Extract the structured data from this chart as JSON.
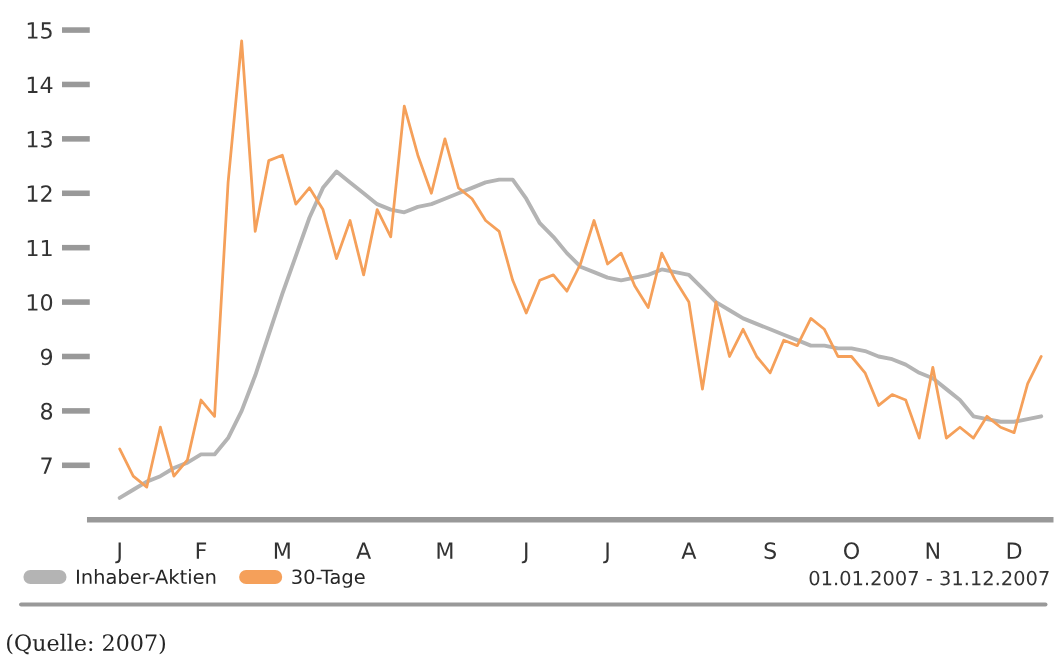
{
  "chart_data": {
    "type": "line",
    "categories": [
      "J",
      null,
      null,
      null,
      null,
      null,
      "F",
      null,
      null,
      null,
      null,
      null,
      "M",
      null,
      null,
      null,
      null,
      null,
      "A",
      null,
      null,
      null,
      null,
      null,
      "M",
      null,
      null,
      null,
      null,
      null,
      "J",
      null,
      null,
      null,
      null,
      null,
      "J",
      null,
      null,
      null,
      null,
      null,
      "A",
      null,
      null,
      null,
      null,
      null,
      "S",
      null,
      null,
      null,
      null,
      null,
      "O",
      null,
      null,
      null,
      null,
      null,
      "N",
      null,
      null,
      null,
      null,
      null,
      "D",
      null,
      null
    ],
    "ylim": [
      6,
      15
    ],
    "yticks": [
      7,
      8,
      9,
      10,
      11,
      12,
      13,
      14,
      15
    ],
    "grid": false,
    "legend": "bottom",
    "series": [
      {
        "name": "Inhaber-Aktien",
        "color": "#b4b4b4",
        "values": [
          6.4,
          6.55,
          6.7,
          6.8,
          6.95,
          7.05,
          7.2,
          7.2,
          7.5,
          8.0,
          8.65,
          9.4,
          10.15,
          10.85,
          11.55,
          12.1,
          12.4,
          12.2,
          12.0,
          11.8,
          11.7,
          11.65,
          11.75,
          11.8,
          11.9,
          12.0,
          12.1,
          12.2,
          12.25,
          12.25,
          11.9,
          11.45,
          11.2,
          10.9,
          10.65,
          10.55,
          10.45,
          10.4,
          10.45,
          10.5,
          10.6,
          10.55,
          10.5,
          10.25,
          10.0,
          9.85,
          9.7,
          9.6,
          9.5,
          9.4,
          9.3,
          9.2,
          9.2,
          9.15,
          9.15,
          9.1,
          9.0,
          8.95,
          8.85,
          8.7,
          8.6,
          8.4,
          8.2,
          7.9,
          7.85,
          7.8,
          7.8,
          7.85,
          7.9
        ]
      },
      {
        "name": "30-Tage",
        "color": "#f5a05a",
        "values": [
          7.3,
          6.8,
          6.6,
          7.7,
          6.8,
          7.1,
          8.2,
          7.9,
          12.2,
          14.8,
          11.3,
          12.6,
          12.7,
          11.8,
          12.1,
          11.7,
          10.8,
          11.5,
          10.5,
          11.7,
          11.2,
          13.6,
          12.7,
          12.0,
          13.0,
          12.1,
          11.9,
          11.5,
          11.3,
          10.4,
          9.8,
          10.4,
          10.5,
          10.2,
          10.7,
          11.5,
          10.7,
          10.9,
          10.3,
          9.9,
          10.9,
          10.4,
          10.0,
          8.4,
          10.0,
          9.0,
          9.5,
          9.0,
          8.7,
          9.3,
          9.2,
          9.7,
          9.5,
          9.0,
          9.0,
          8.7,
          8.1,
          8.3,
          8.2,
          7.5,
          8.8,
          7.5,
          7.7,
          7.5,
          7.9,
          7.7,
          7.6,
          8.5,
          9.0
        ]
      }
    ],
    "annotations": [
      "01.01.2007 - 31.12.2007",
      "(Quelle: 2007)"
    ]
  }
}
